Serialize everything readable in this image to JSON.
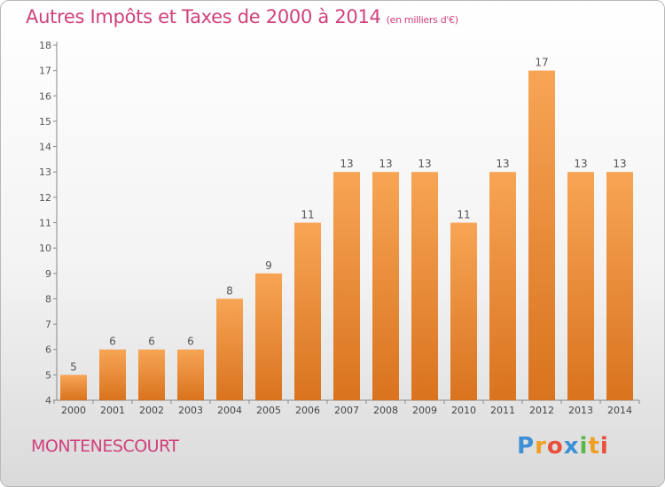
{
  "header": {
    "title": "Autres Impôts et Taxes de 2000 à 2014",
    "subtitle": "(en milliers d'€)"
  },
  "footer": {
    "place": "MONTENESCOURT",
    "logo_letters": [
      "P",
      "r",
      "o",
      "x",
      "i",
      "t",
      "i"
    ]
  },
  "colors": {
    "title": "#d0417b",
    "bar_top": "#f7a555",
    "bar_bottom": "#d9731e",
    "axis": "#888888"
  },
  "chart_data": {
    "type": "bar",
    "title": "Autres Impôts et Taxes de 2000 à 2014",
    "subtitle": "(en milliers d'€)",
    "categories": [
      "2000",
      "2001",
      "2002",
      "2003",
      "2004",
      "2005",
      "2006",
      "2007",
      "2008",
      "2009",
      "2010",
      "2011",
      "2012",
      "2013",
      "2014"
    ],
    "values": [
      5,
      6,
      6,
      6,
      8,
      9,
      11,
      13,
      13,
      13,
      11,
      13,
      17,
      13,
      13
    ],
    "data_labels": [
      "5",
      "6",
      "6",
      "6",
      "8",
      "9",
      "11",
      "13",
      "13",
      "13",
      "11",
      "13",
      "17",
      "13",
      "13"
    ],
    "ylim": [
      4,
      18
    ],
    "yticks": [
      4,
      5,
      6,
      7,
      8,
      9,
      10,
      11,
      12,
      13,
      14,
      15,
      16,
      17,
      18
    ],
    "ytick_labels": [
      "4",
      "5",
      "6",
      "7",
      "8",
      "9",
      "10",
      "11",
      "12",
      "13",
      "14",
      "15",
      "16",
      "17",
      "18"
    ],
    "grid": false,
    "legend": "none"
  }
}
